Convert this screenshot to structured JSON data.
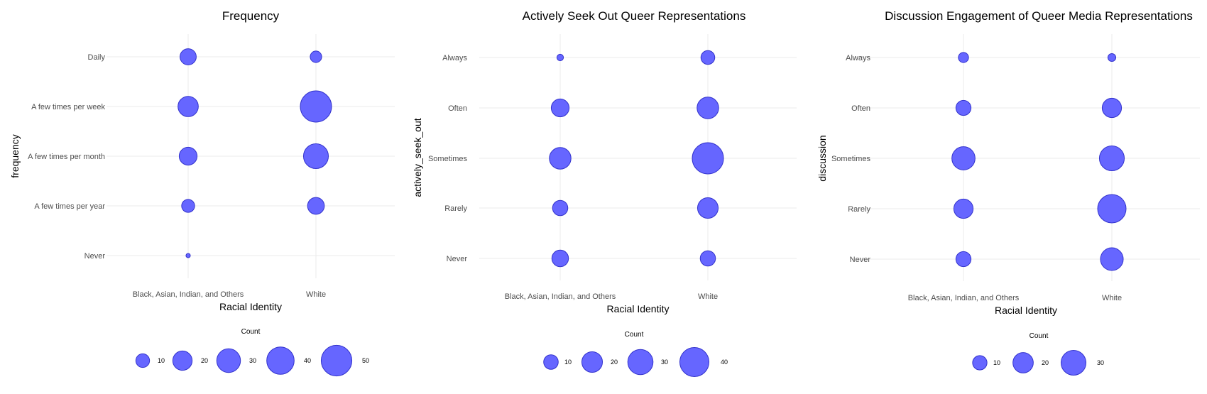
{
  "chart_data": [
    {
      "type": "scatter",
      "title": "Frequency",
      "xlabel": "Racial Identity",
      "ylabel": "frequency",
      "x_categories": [
        "Black, Asian, Indian, and Others",
        "White"
      ],
      "y_categories": [
        "Never",
        "A few times per year",
        "A few times per month",
        "A few times per week",
        "Daily"
      ],
      "points": [
        {
          "x": "Black, Asian, Indian, and Others",
          "y": "Daily",
          "count": 14
        },
        {
          "x": "Black, Asian, Indian, and Others",
          "y": "A few times per week",
          "count": 22
        },
        {
          "x": "Black, Asian, Indian, and Others",
          "y": "A few times per month",
          "count": 17
        },
        {
          "x": "Black, Asian, Indian, and Others",
          "y": "A few times per year",
          "count": 9
        },
        {
          "x": "Black, Asian, Indian, and Others",
          "y": "Never",
          "count": 1
        },
        {
          "x": "White",
          "y": "Daily",
          "count": 7
        },
        {
          "x": "White",
          "y": "A few times per week",
          "count": 52
        },
        {
          "x": "White",
          "y": "A few times per month",
          "count": 33
        },
        {
          "x": "White",
          "y": "A few times per year",
          "count": 15
        },
        {
          "x": "White",
          "y": "Never",
          "count": 0
        }
      ],
      "legend": {
        "title": "Count",
        "breaks": [
          10,
          20,
          30,
          40,
          50
        ],
        "position": "bottom"
      },
      "max_count": 52,
      "grid": true
    },
    {
      "type": "scatter",
      "title": "Actively Seek Out Queer Representations",
      "xlabel": "Racial Identity",
      "ylabel": "actively_seek_out",
      "x_categories": [
        "Black, Asian, Indian, and Others",
        "White"
      ],
      "y_categories": [
        "Never",
        "Rarely",
        "Sometimes",
        "Often",
        "Always"
      ],
      "points": [
        {
          "x": "Black, Asian, Indian, and Others",
          "y": "Always",
          "count": 2
        },
        {
          "x": "Black, Asian, Indian, and Others",
          "y": "Often",
          "count": 15
        },
        {
          "x": "Black, Asian, Indian, and Others",
          "y": "Sometimes",
          "count": 22
        },
        {
          "x": "Black, Asian, Indian, and Others",
          "y": "Rarely",
          "count": 11
        },
        {
          "x": "Black, Asian, Indian, and Others",
          "y": "Never",
          "count": 13
        },
        {
          "x": "White",
          "y": "Always",
          "count": 9
        },
        {
          "x": "White",
          "y": "Often",
          "count": 22
        },
        {
          "x": "White",
          "y": "Sometimes",
          "count": 46
        },
        {
          "x": "White",
          "y": "Rarely",
          "count": 20
        },
        {
          "x": "White",
          "y": "Never",
          "count": 11
        }
      ],
      "legend": {
        "title": "Count",
        "breaks": [
          10,
          20,
          30,
          40
        ],
        "position": "bottom"
      },
      "max_count": 46,
      "grid": true
    },
    {
      "type": "scatter",
      "title": "Discussion Engagement of Queer Media Representations",
      "xlabel": "Racial Identity",
      "ylabel": "discussion",
      "x_categories": [
        "Black, Asian, Indian, and Others",
        "White"
      ],
      "y_categories": [
        "Never",
        "Rarely",
        "Sometimes",
        "Often",
        "Always"
      ],
      "points": [
        {
          "x": "Black, Asian, Indian, and Others",
          "y": "Always",
          "count": 5
        },
        {
          "x": "Black, Asian, Indian, and Others",
          "y": "Often",
          "count": 11
        },
        {
          "x": "Black, Asian, Indian, and Others",
          "y": "Sometimes",
          "count": 26
        },
        {
          "x": "Black, Asian, Indian, and Others",
          "y": "Rarely",
          "count": 18
        },
        {
          "x": "Black, Asian, Indian, and Others",
          "y": "Never",
          "count": 11
        },
        {
          "x": "White",
          "y": "Always",
          "count": 3
        },
        {
          "x": "White",
          "y": "Often",
          "count": 18
        },
        {
          "x": "White",
          "y": "Sometimes",
          "count": 30
        },
        {
          "x": "White",
          "y": "Rarely",
          "count": 39
        },
        {
          "x": "White",
          "y": "Never",
          "count": 25
        }
      ],
      "legend": {
        "title": "Count",
        "breaks": [
          10,
          20,
          30
        ],
        "position": "bottom"
      },
      "max_count": 39,
      "grid": true
    }
  ],
  "colors": {
    "bubble_fill": "#6666ff",
    "bubble_stroke": "#3333cc",
    "grid": "#ebebeb"
  }
}
